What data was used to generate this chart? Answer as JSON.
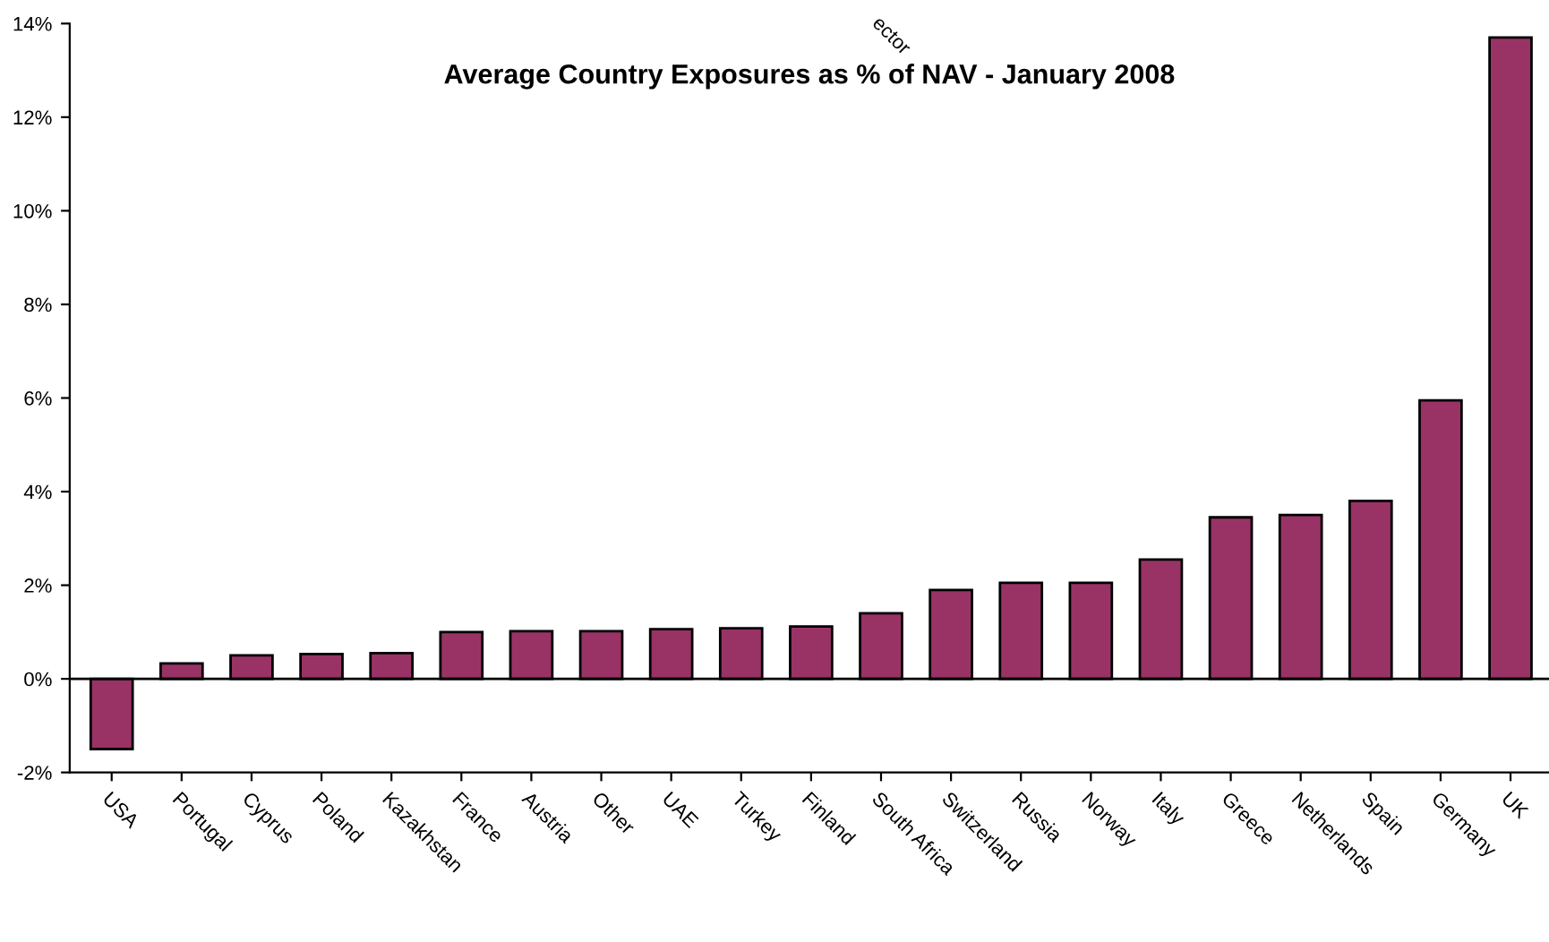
{
  "chart_data": {
    "type": "bar",
    "title": "Average Country Exposures as % of NAV - January 2008",
    "categories": [
      "USA",
      "Portugal",
      "Cyprus",
      "Poland",
      "Kazakhstan",
      "France",
      "Austria",
      "Other",
      "UAE",
      "Turkey",
      "Finland",
      "South Africa",
      "Switzerland",
      "Russia",
      "Norway",
      "Italy",
      "Greece",
      "Netherlands",
      "Spain",
      "Germany",
      "UK"
    ],
    "values": [
      -1.5,
      0.33,
      0.5,
      0.53,
      0.55,
      1.0,
      1.02,
      1.02,
      1.06,
      1.08,
      1.12,
      1.4,
      1.9,
      2.05,
      2.05,
      2.55,
      3.45,
      3.5,
      3.8,
      5.95,
      13.7
    ],
    "color": "#993366",
    "ylim": [
      -2,
      14
    ],
    "yticks": [
      {
        "value": -2,
        "label": "-2%"
      },
      {
        "value": 0,
        "label": "0%"
      },
      {
        "value": 2,
        "label": "2%"
      },
      {
        "value": 4,
        "label": "4%"
      },
      {
        "value": 6,
        "label": "6%"
      },
      {
        "value": 8,
        "label": "8%"
      },
      {
        "value": 10,
        "label": "10%"
      },
      {
        "value": 12,
        "label": "12%"
      },
      {
        "value": 14,
        "label": "14%"
      }
    ],
    "ref_lines": [
      {
        "axis": "y",
        "value": 0,
        "color": "#000000"
      }
    ],
    "annotations": [
      "ector"
    ],
    "grid": false,
    "legend": false
  }
}
